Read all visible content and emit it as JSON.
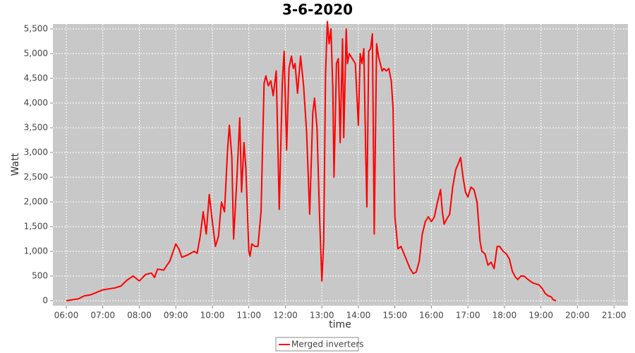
{
  "chart_data": {
    "type": "line",
    "title": "3-6-2020",
    "x_label": "time",
    "y_label": "Watt",
    "xlim": [
      338,
      1283
    ],
    "ylim": [
      -100,
      5600
    ],
    "xticks": [
      {
        "value": 360,
        "label": "06:00"
      },
      {
        "value": 420,
        "label": "07:00"
      },
      {
        "value": 480,
        "label": "08:00"
      },
      {
        "value": 540,
        "label": "09:00"
      },
      {
        "value": 600,
        "label": "10:00"
      },
      {
        "value": 660,
        "label": "11:00"
      },
      {
        "value": 720,
        "label": "12:00"
      },
      {
        "value": 780,
        "label": "13:00"
      },
      {
        "value": 840,
        "label": "14:00"
      },
      {
        "value": 900,
        "label": "15:00"
      },
      {
        "value": 960,
        "label": "16:00"
      },
      {
        "value": 1020,
        "label": "17:00"
      },
      {
        "value": 1080,
        "label": "18:00"
      },
      {
        "value": 1140,
        "label": "19:00"
      },
      {
        "value": 1200,
        "label": "20:00"
      },
      {
        "value": 1260,
        "label": "21:00"
      }
    ],
    "yticks": [
      0,
      {
        "value": 500,
        "label": "500"
      },
      {
        "value": 1000,
        "label": "1,000"
      },
      {
        "value": 1500,
        "label": "1,500"
      },
      {
        "value": 2000,
        "label": "2,000"
      },
      {
        "value": 2500,
        "label": "2,500"
      },
      {
        "value": 3000,
        "label": "3,000"
      },
      {
        "value": 3500,
        "label": "3,500"
      },
      {
        "value": 4000,
        "label": "4,000"
      },
      {
        "value": 4500,
        "label": "4,500"
      },
      {
        "value": 5000,
        "label": "5,000"
      },
      {
        "value": 5500,
        "label": "5,500"
      }
    ],
    "grid": true,
    "legend": "bottom",
    "x": [
      360,
      370,
      380,
      390,
      400,
      410,
      420,
      430,
      440,
      450,
      460,
      470,
      475,
      480,
      490,
      500,
      505,
      510,
      520,
      530,
      540,
      545,
      550,
      560,
      570,
      575,
      580,
      585,
      590,
      595,
      600,
      605,
      610,
      615,
      620,
      625,
      628,
      632,
      635,
      640,
      645,
      648,
      652,
      655,
      660,
      662,
      665,
      670,
      675,
      680,
      685,
      688,
      692,
      696,
      700,
      705,
      710,
      715,
      718,
      722,
      726,
      730,
      733,
      736,
      740,
      745,
      750,
      755,
      760,
      765,
      768,
      772,
      776,
      780,
      783,
      786,
      789,
      792,
      795,
      798,
      800,
      804,
      807,
      810,
      814,
      816,
      820,
      822,
      825,
      830,
      835,
      840,
      843,
      846,
      849,
      852,
      854,
      857,
      860,
      863,
      866,
      870,
      873,
      876,
      879,
      882,
      886,
      890,
      894,
      897,
      900,
      905,
      910,
      915,
      920,
      925,
      930,
      935,
      940,
      945,
      950,
      955,
      960,
      965,
      970,
      975,
      978,
      981,
      985,
      990,
      995,
      1000,
      1005,
      1008,
      1012,
      1016,
      1020,
      1025,
      1030,
      1035,
      1040,
      1043,
      1048,
      1053,
      1058,
      1063,
      1068,
      1072,
      1078,
      1083,
      1088,
      1093,
      1098,
      1102,
      1107,
      1112,
      1117,
      1122,
      1127,
      1132,
      1137,
      1142,
      1147,
      1152,
      1157,
      1160,
      1165
    ],
    "series": [
      {
        "name": "Merged inverters",
        "color": "#ff0000",
        "values": [
          0,
          20,
          40,
          100,
          120,
          170,
          220,
          240,
          260,
          300,
          420,
          500,
          450,
          400,
          530,
          560,
          470,
          640,
          620,
          800,
          1150,
          1050,
          880,
          930,
          1000,
          960,
          1300,
          1800,
          1350,
          2150,
          1600,
          1100,
          1300,
          2000,
          1800,
          3050,
          3550,
          2900,
          1250,
          2400,
          3700,
          2200,
          3200,
          2700,
          1000,
          900,
          1150,
          1100,
          1100,
          1800,
          4400,
          4550,
          4350,
          4450,
          4150,
          4650,
          1850,
          4400,
          5050,
          3050,
          4700,
          4950,
          4700,
          4800,
          4200,
          4950,
          4350,
          3400,
          1750,
          3800,
          4100,
          3500,
          1800,
          400,
          1200,
          4600,
          5650,
          5200,
          5500,
          4300,
          2500,
          4800,
          4900,
          3200,
          5300,
          3300,
          5500,
          4800,
          5000,
          4900,
          4800,
          3550,
          5000,
          4800,
          5100,
          3000,
          1900,
          5050,
          5100,
          5400,
          1350,
          5200,
          4950,
          4800,
          4650,
          4700,
          4650,
          4700,
          4450,
          3900,
          1700,
          1050,
          1100,
          950,
          800,
          650,
          550,
          580,
          800,
          1350,
          1600,
          1700,
          1600,
          1700,
          2000,
          2250,
          1800,
          1550,
          1650,
          1750,
          2300,
          2650,
          2800,
          2900,
          2500,
          2200,
          2100,
          2300,
          2250,
          2000,
          1200,
          1000,
          950,
          720,
          780,
          650,
          1100,
          1100,
          1000,
          950,
          850,
          600,
          480,
          430,
          500,
          500,
          450,
          400,
          360,
          340,
          320,
          250,
          150,
          100,
          80,
          20,
          0
        ]
      }
    ]
  }
}
